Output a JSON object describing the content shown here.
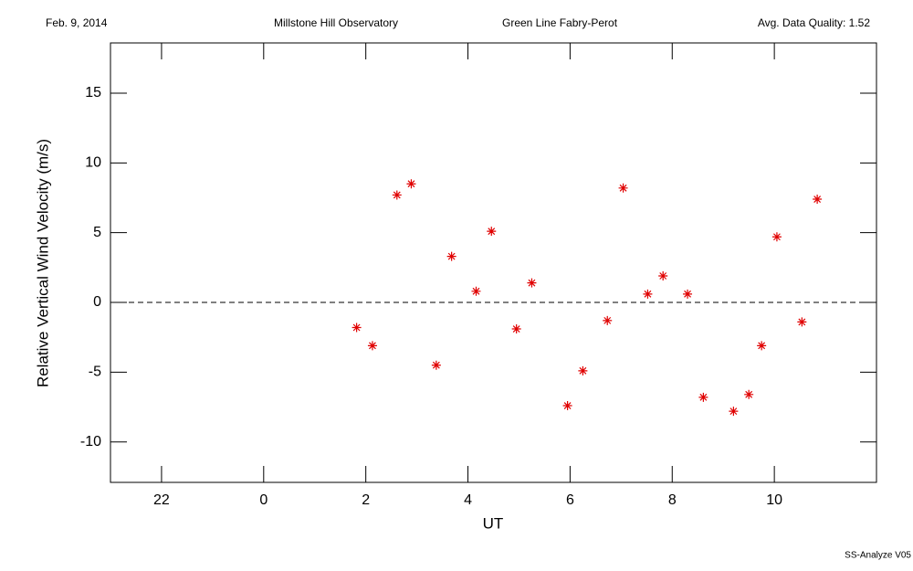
{
  "chart_data": {
    "type": "scatter",
    "annotations": [
      "Feb. 9, 2014",
      "Millstone Hill Observatory",
      "Green Line Fabry-Perot",
      "Avg. Data Quality: 1.52"
    ],
    "footer": "SS-Analyze V05",
    "x_label": "UT",
    "y_label": "Relative Vertical Wind Velocity (m/s)",
    "color": "#e00000",
    "x": [
      25.82,
      26.13,
      26.61,
      26.89,
      27.38,
      27.68,
      28.16,
      28.46,
      28.95,
      29.25,
      29.95,
      30.25,
      30.73,
      31.04,
      31.52,
      31.82,
      32.3,
      32.61,
      33.2,
      33.5,
      33.75,
      34.05,
      34.54,
      34.84
    ],
    "values": [
      -1.8,
      -3.1,
      7.7,
      8.5,
      -4.5,
      3.3,
      0.8,
      5.1,
      -1.9,
      1.4,
      -7.4,
      -4.9,
      -1.3,
      8.2,
      0.6,
      1.9,
      0.6,
      -6.8,
      -7.8,
      -6.6,
      -3.1,
      4.7,
      -1.4,
      7.4
    ],
    "xlim": [
      21,
      36
    ],
    "xticks": [
      22,
      {
        "value": 24,
        "label": "0"
      },
      {
        "value": 26,
        "label": "2"
      },
      {
        "value": 28,
        "label": "4"
      },
      {
        "value": 30,
        "label": "6"
      },
      {
        "value": 32,
        "label": "8"
      },
      {
        "value": 34,
        "label": "10"
      }
    ],
    "ylim": [
      -12.9,
      18.6
    ],
    "yticks": [
      -10,
      -5,
      0,
      5,
      10,
      15
    ],
    "reference_line": 0
  }
}
